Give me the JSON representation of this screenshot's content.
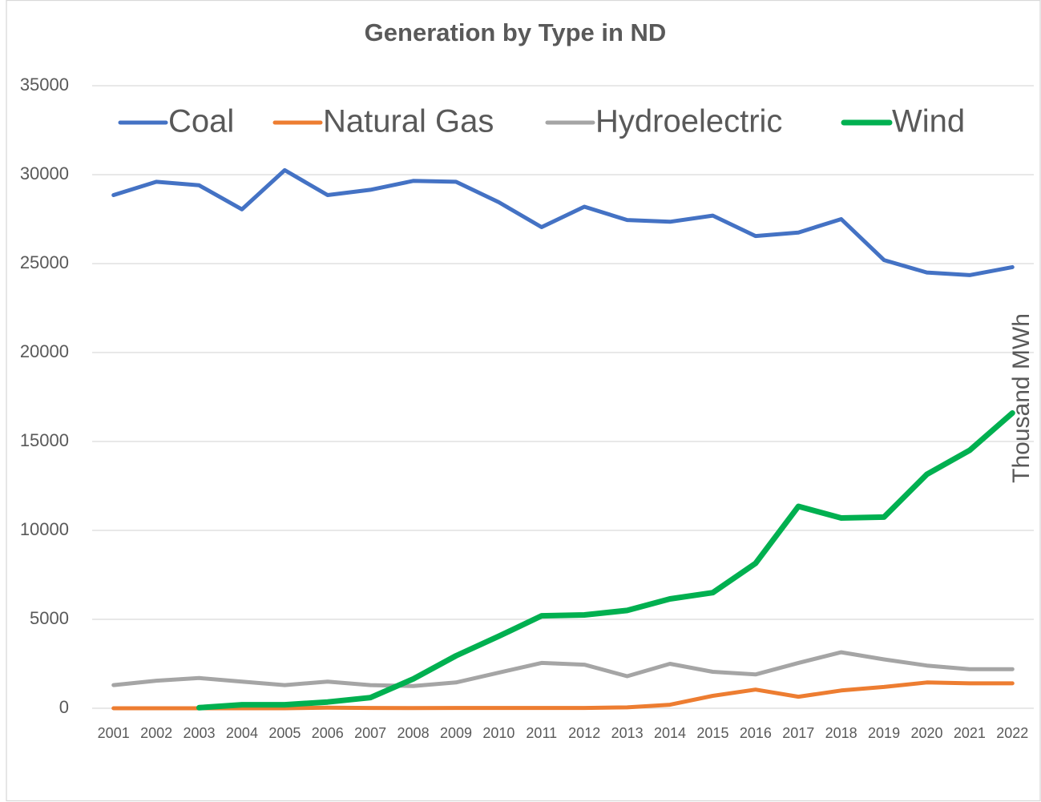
{
  "chart_data": {
    "type": "line",
    "title": "Generation by Type in ND",
    "y_label": "Thousand MWh",
    "categories": [
      "2001",
      "2002",
      "2003",
      "2004",
      "2005",
      "2006",
      "2007",
      "2008",
      "2009",
      "2010",
      "2011",
      "2012",
      "2013",
      "2014",
      "2015",
      "2016",
      "2017",
      "2018",
      "2019",
      "2020",
      "2021",
      "2022"
    ],
    "series": [
      {
        "name": "Coal",
        "color": "#4472c4",
        "values": [
          28850,
          29600,
          29400,
          28050,
          30250,
          28850,
          29150,
          29650,
          29600,
          28450,
          27050,
          28200,
          27450,
          27350,
          27700,
          26550,
          26750,
          27500,
          25200,
          24500,
          24350,
          24800
        ]
      },
      {
        "name": "Natural Gas",
        "color": "#ed7d31",
        "values": [
          0,
          0,
          0,
          0,
          0,
          30,
          20,
          10,
          20,
          20,
          20,
          20,
          50,
          200,
          700,
          1050,
          650,
          1000,
          1200,
          1450,
          1400,
          1400
        ]
      },
      {
        "name": "Hydroelectric",
        "color": "#a5a5a5",
        "values": [
          1300,
          1550,
          1700,
          1500,
          1300,
          1500,
          1300,
          1250,
          1450,
          2000,
          2550,
          2450,
          1800,
          2500,
          2050,
          1900,
          2550,
          3150,
          2750,
          2400,
          2200,
          2200
        ]
      },
      {
        "name": "Wind",
        "color": "#00b050",
        "values": [
          null,
          null,
          30,
          200,
          200,
          350,
          600,
          1650,
          2950,
          4050,
          5200,
          5250,
          5500,
          6150,
          6500,
          8150,
          11350,
          10700,
          10750,
          13150,
          14500,
          16600
        ]
      }
    ],
    "ylim": [
      0,
      35000
    ],
    "yticks": [
      0,
      5000,
      10000,
      15000,
      20000,
      25000,
      30000,
      35000
    ],
    "grid": true,
    "legend": "top"
  }
}
